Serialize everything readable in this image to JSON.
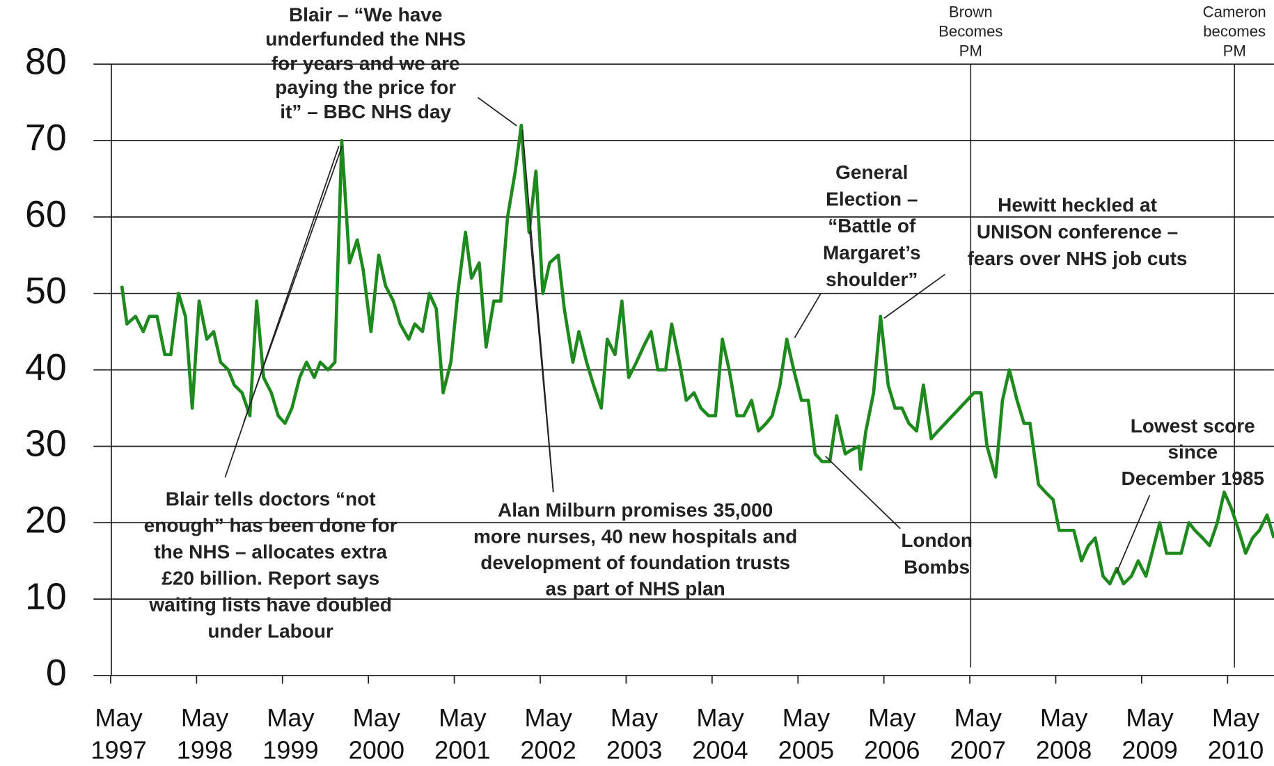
{
  "chart_data": {
    "type": "line",
    "series": [
      {
        "color": "#1e8a1e",
        "x": [
          1997.46,
          1997.52,
          1997.62,
          1997.71,
          1997.78,
          1997.87,
          1997.96,
          1998.03,
          1998.12,
          1998.2,
          1998.28,
          1998.36,
          1998.45,
          1998.53,
          1998.61,
          1998.7,
          1998.77,
          1998.86,
          1998.95,
          1999.03,
          1999.11,
          1999.2,
          1999.28,
          1999.36,
          1999.44,
          1999.53,
          1999.61,
          1999.7,
          1999.77,
          1999.86,
          1999.94,
          2000.02,
          2000.11,
          2000.2,
          2000.27,
          2000.36,
          2000.45,
          2000.53,
          2000.62,
          2000.7,
          2000.8,
          2000.87,
          2000.96,
          2001.04,
          2001.12,
          2001.2,
          2001.29,
          2001.37,
          2001.46,
          2001.53,
          2001.62,
          2001.7,
          2001.79,
          2001.87,
          2001.95,
          2002.04,
          2002.11,
          2002.2,
          2002.28,
          2002.36,
          2002.44,
          2002.54,
          2002.61,
          2002.71,
          2002.78,
          2002.87,
          2002.95,
          2003.04,
          2003.11,
          2003.2,
          2003.28,
          2003.36,
          2003.45,
          2003.53,
          2003.62,
          2003.7,
          2003.79,
          2003.86,
          2003.95,
          2004.03,
          2004.12,
          2004.2,
          2004.29,
          2004.37,
          2004.45,
          2004.53,
          2004.62,
          2004.7,
          2004.79,
          2004.87,
          2004.96,
          2005.03,
          2005.12,
          2005.2,
          2005.28,
          2005.37,
          2005.45,
          2005.53,
          2005.61,
          2005.7,
          2005.78,
          2005.88,
          2005.95,
          2006.04,
          2006.06,
          2006.12,
          2006.21,
          2006.29,
          2006.38,
          2006.46,
          2006.54,
          2006.62,
          2006.71,
          2006.79,
          2006.88,
          2006.96,
          2007.38,
          2007.46,
          2007.53,
          2007.63,
          2007.71,
          2007.79,
          2007.88,
          2007.96,
          2008.03,
          2008.13,
          2008.21,
          2008.3,
          2008.37,
          2008.46,
          2008.54,
          2008.63,
          2008.71,
          2008.79,
          2008.88,
          2008.96,
          2009.04,
          2009.12,
          2009.21,
          2009.29,
          2009.38,
          2009.45,
          2009.54,
          2009.62,
          2009.71,
          2009.79,
          2009.88,
          2009.95,
          2010.04,
          2010.12,
          2010.21,
          2010.29,
          2010.37,
          2010.46,
          2010.54,
          2010.62,
          2010.7,
          2010.79,
          2010.87
        ],
        "values": [
          51,
          46,
          47,
          45,
          47,
          47,
          42,
          42,
          50,
          47,
          35,
          49,
          44,
          45,
          41,
          40,
          38,
          37,
          34,
          49,
          39,
          37,
          34,
          33,
          35,
          39,
          41,
          39,
          41,
          40,
          41,
          70,
          54,
          57,
          53,
          45,
          55,
          51,
          49,
          46,
          44,
          46,
          45,
          50,
          48,
          37,
          41,
          50,
          58,
          52,
          54,
          43,
          49,
          49,
          60,
          66,
          72,
          58,
          66,
          50,
          54,
          55,
          48,
          41,
          45,
          41,
          38,
          35,
          44,
          42,
          49,
          39,
          41,
          43,
          45,
          40,
          40,
          46,
          41,
          36,
          37,
          35,
          34,
          34,
          44,
          40,
          34,
          34,
          36,
          32,
          33,
          34,
          38,
          44,
          40,
          36,
          36,
          29,
          28,
          28,
          34,
          29,
          29.5,
          30,
          27,
          32,
          37,
          47,
          38,
          35,
          35,
          33,
          32,
          38,
          31,
          32,
          37,
          37,
          30,
          26,
          36,
          40,
          36,
          33,
          33,
          25,
          24,
          23,
          19,
          19,
          19,
          15,
          17,
          18,
          13,
          12,
          14,
          12,
          13,
          15,
          13,
          16,
          20,
          16,
          16,
          16,
          20,
          19,
          18,
          17,
          20,
          24,
          22,
          19,
          16,
          18,
          19,
          21,
          18
        ]
      }
    ],
    "xlim": [
      1997.13,
      2010.87
    ],
    "xticks": [
      {
        "value": 1997.33,
        "label": "May 1997"
      },
      {
        "value": 1998.33,
        "label": "May 1998"
      },
      {
        "value": 1999.33,
        "label": "May 1999"
      },
      {
        "value": 2000.33,
        "label": "May 2000"
      },
      {
        "value": 2001.33,
        "label": "May 2001"
      },
      {
        "value": 2002.33,
        "label": "May 2002"
      },
      {
        "value": 2003.33,
        "label": "May 2003"
      },
      {
        "value": 2004.33,
        "label": "May 2004"
      },
      {
        "value": 2005.33,
        "label": "May 2005"
      },
      {
        "value": 2006.33,
        "label": "May 2006"
      },
      {
        "value": 2007.33,
        "label": "May 2007"
      },
      {
        "value": 2008.33,
        "label": "May 2008"
      },
      {
        "value": 2009.33,
        "label": "May 2009"
      },
      {
        "value": 2010.33,
        "label": "May 2010"
      }
    ],
    "ylim": [
      0,
      80
    ],
    "yticks": [
      0,
      10,
      20,
      30,
      40,
      50,
      60,
      70,
      80
    ],
    "grid": true,
    "events": [
      {
        "x": 2007.34,
        "label": [
          "Brown",
          "Becomes",
          "PM"
        ]
      },
      {
        "x": 2010.41,
        "label": [
          "Cameron",
          "becomes",
          "PM"
        ]
      }
    ],
    "annotations": [
      {
        "lines": [
          "Blair – “We have",
          "underfunded the NHS",
          "for years and we are",
          "paying the price for",
          "it” – BBC NHS day"
        ]
      },
      {
        "lines": [
          "Blair tells doctors “not",
          "enough” has been done for",
          "the NHS – allocates extra",
          "£20 billion. Report says",
          "waiting lists have doubled",
          "under Labour"
        ]
      },
      {
        "lines": [
          "Alan Milburn promises 35,000",
          "more nurses, 40 new hospitals and",
          "development of foundation trusts",
          "as part of NHS plan"
        ]
      },
      {
        "lines": [
          "General",
          "Election –",
          "“Battle of",
          "Margaret’s",
          "shoulder”"
        ]
      },
      {
        "lines": [
          "Hewitt heckled at",
          "UNISON conference –",
          "fears over NHS job cuts"
        ]
      },
      {
        "lines": [
          "London",
          "Bombs"
        ]
      },
      {
        "lines": [
          "Lowest score",
          "since",
          "December 1985"
        ]
      }
    ]
  }
}
